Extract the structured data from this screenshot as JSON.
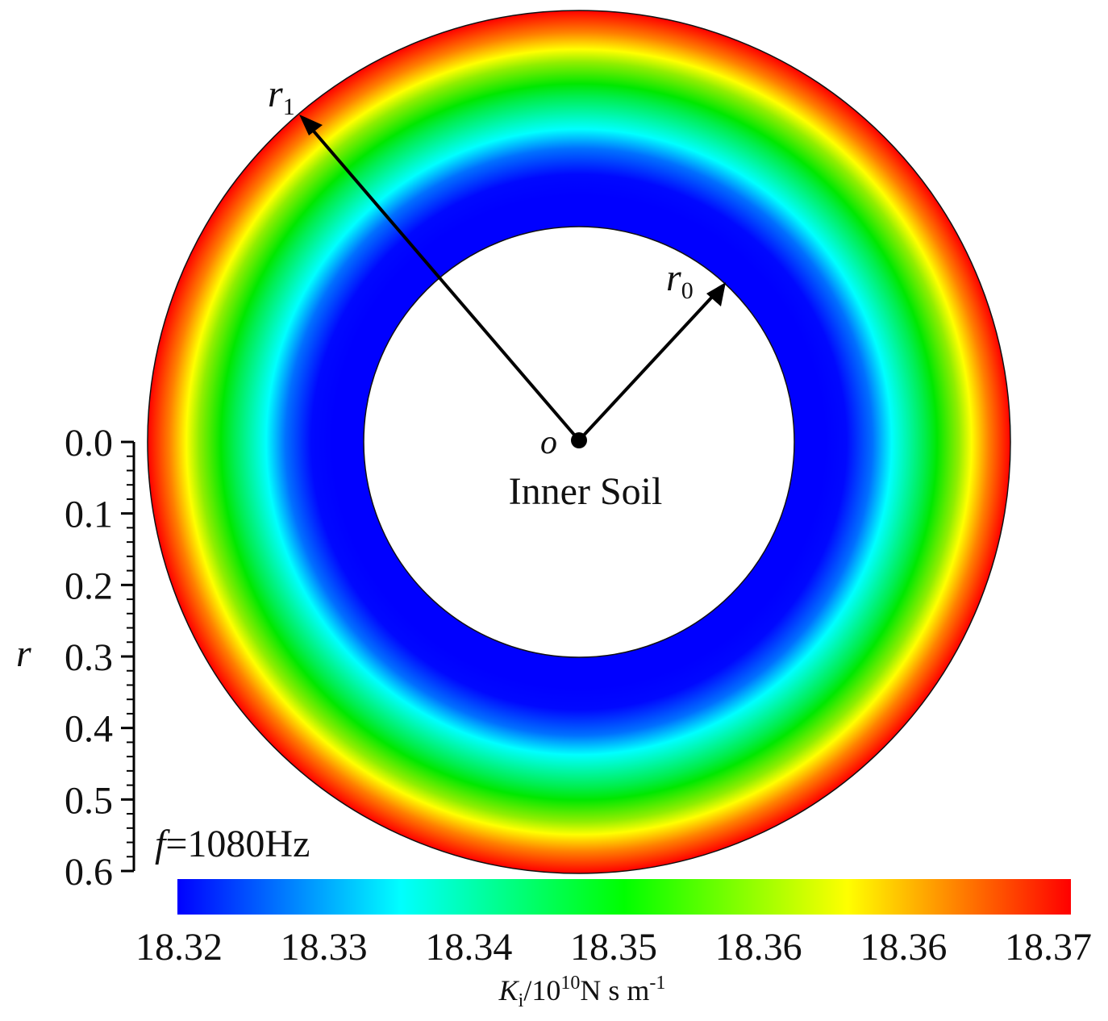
{
  "chart_data": {
    "type": "heatmap",
    "subtype": "polar-annulus-contour",
    "title": "",
    "annotation": "f=1080Hz",
    "annotation_parts": {
      "symbol": "f",
      "value": "=1080Hz"
    },
    "region_label": "Inner Soil",
    "center_label": "o",
    "radius_labels": [
      {
        "name": "r",
        "subscript": "1"
      },
      {
        "name": "r",
        "subscript": "0"
      }
    ],
    "radial_axis": {
      "label": "r",
      "ticks": [
        "0.0",
        "0.1",
        "0.2",
        "0.3",
        "0.4",
        "0.5",
        "0.6"
      ],
      "range": [
        0.0,
        0.6
      ],
      "inner_radius": 0.3,
      "outer_radius": 0.6
    },
    "colorbar": {
      "label_parts": {
        "symbol": "K",
        "symbol_sub": "i",
        "base": "/10",
        "exp": "10",
        "unit": "N s m",
        "unit_exp": "-1"
      },
      "tick_labels": [
        "18.32",
        "18.33",
        "18.34",
        "18.35",
        "18.36",
        "18.36",
        "18.37"
      ],
      "range": [
        18.32,
        18.37
      ],
      "colormap": "jet",
      "colors": [
        "#0000ff",
        "#00ffff",
        "#00ff00",
        "#ffff00",
        "#ff0000"
      ]
    },
    "radial_profile": {
      "r": [
        0.3,
        0.35,
        0.4,
        0.45,
        0.5,
        0.55,
        0.6
      ],
      "values": [
        18.32,
        18.32,
        18.325,
        18.335,
        18.35,
        18.36,
        18.37
      ]
    }
  }
}
